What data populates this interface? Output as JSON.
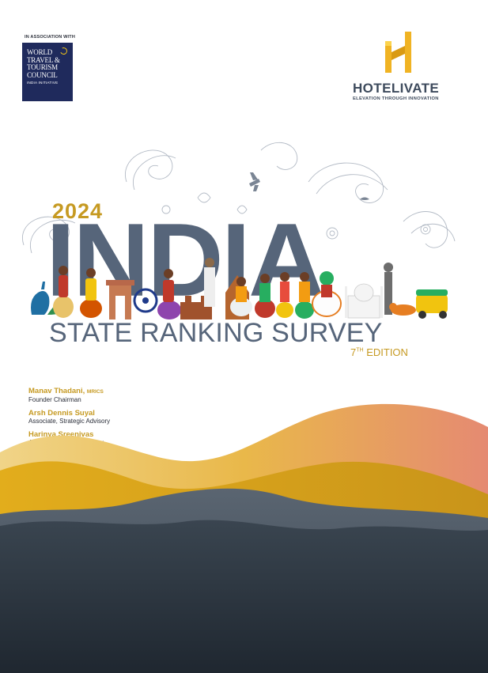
{
  "association_label": "IN ASSOCIATION WITH",
  "wttc": {
    "lines": [
      "WORLD",
      "TRAVEL &",
      "TOURISM",
      "COUNCIL"
    ],
    "subtitle": "INDIA INITIATIVE"
  },
  "brand": {
    "name": "HOTELIVATE",
    "tagline": "ELEVATION THROUGH INNOVATION",
    "colors": {
      "gold": "#f0b323",
      "slate": "#3d4a5c"
    }
  },
  "title": {
    "year": "2024",
    "main": "INDIA",
    "subtitle": "STATE RANKING SURVEY",
    "edition_num": "7",
    "edition_sup": "TH",
    "edition_word": "EDITION"
  },
  "authors": [
    {
      "name": "Manav Thadani,",
      "credential": "MRICS",
      "role": "Founder Chairman"
    },
    {
      "name": "Arsh Dennis Suyal",
      "credential": "",
      "role": "Associate, Strategic Advisory"
    },
    {
      "name": "Harinya Sreenivas",
      "credential": "",
      "role": "Analyst, Strategic Advisory"
    }
  ],
  "colors": {
    "accent_gold": "#c69a22",
    "title_slate": "#56657a",
    "wave_dark": "#2f3a46",
    "wave_mid": "#4c5967",
    "wave_gold": "#e0ae1c",
    "wave_peach": "#e08c72"
  }
}
